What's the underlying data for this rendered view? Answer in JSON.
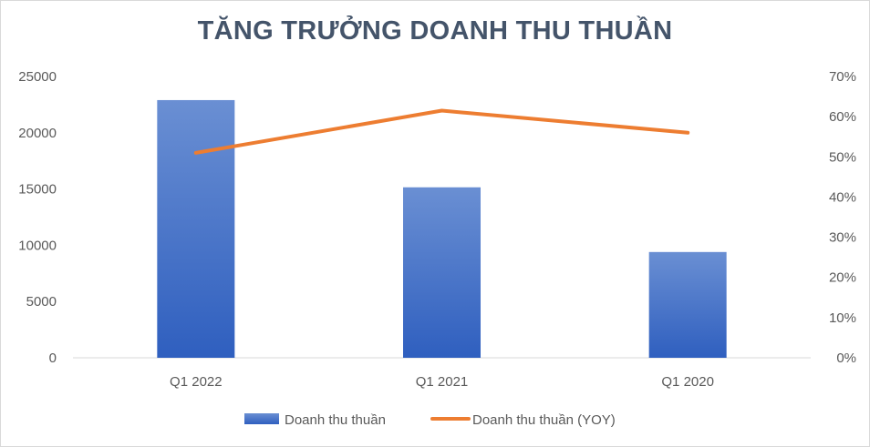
{
  "chart_data": {
    "type": "bar",
    "title": "TĂNG TRƯỞNG DOANH THU THUẦN",
    "categories": [
      "Q1 2022",
      "Q1 2021",
      "Q1 2020"
    ],
    "series": [
      {
        "name": "Doanh thu thuần",
        "type": "bar",
        "axis": "left",
        "values": [
          22900,
          15150,
          9400
        ]
      },
      {
        "name": "Doanh thu thuần (YOY)",
        "type": "line",
        "axis": "right",
        "values": [
          0.51,
          0.615,
          0.56
        ]
      }
    ],
    "y_left": {
      "min": 0,
      "max": 25000,
      "ticks": [
        "0",
        "5000",
        "10000",
        "15000",
        "20000",
        "25000"
      ]
    },
    "y_right": {
      "min": 0,
      "max": 0.7,
      "ticks": [
        "0%",
        "10%",
        "20%",
        "30%",
        "40%",
        "50%",
        "60%",
        "70%"
      ]
    },
    "grid": false,
    "legend": "bottom",
    "colors": {
      "bar_top": "#6a8fd3",
      "bar_bottom": "#2f5fbf",
      "line": "#ed7d31",
      "title": "#44546a",
      "text": "#595959",
      "axis": "#d9d9d9"
    }
  }
}
